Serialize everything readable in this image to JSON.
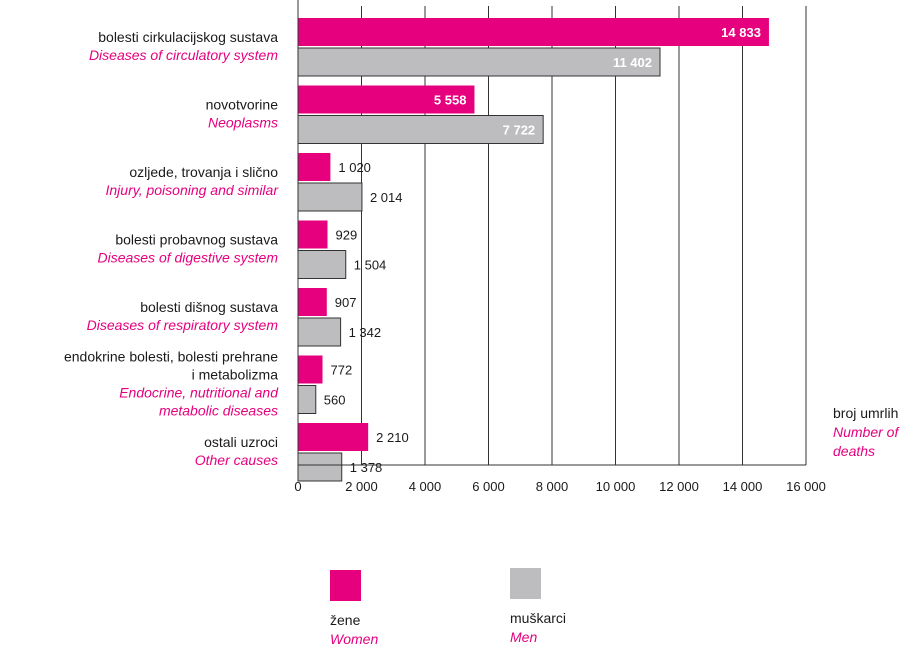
{
  "chart_data": {
    "type": "bar",
    "orientation": "horizontal",
    "categories": [
      {
        "hr": [
          "bolesti cirkulacijskog sustava"
        ],
        "en": [
          "Diseases of circulatory system"
        ]
      },
      {
        "hr": [
          "novotvorine"
        ],
        "en": [
          "Neoplasms"
        ]
      },
      {
        "hr": [
          "ozljede, trovanja i slično"
        ],
        "en": [
          "Injury, poisoning and similar"
        ]
      },
      {
        "hr": [
          "bolesti probavnog sustava"
        ],
        "en": [
          "Diseases of digestive system"
        ]
      },
      {
        "hr": [
          "bolesti dišnog sustava"
        ],
        "en": [
          "Diseases of respiratory system"
        ]
      },
      {
        "hr": [
          "endokrine bolesti, bolesti prehrane",
          "i metabolizma"
        ],
        "en": [
          "Endocrine, nutritional and",
          "metabolic diseases"
        ]
      },
      {
        "hr": [
          "ostali uzroci"
        ],
        "en": [
          "Other causes"
        ]
      }
    ],
    "series": [
      {
        "name": "žene",
        "name_en": "Women",
        "color": "#e6007e",
        "values": [
          14833,
          5558,
          1020,
          929,
          907,
          772,
          2210
        ],
        "labels": [
          "14 833",
          "5 558",
          "1 020",
          "929",
          "907",
          "772",
          "2 210"
        ]
      },
      {
        "name": "muškarci",
        "name_en": "Men",
        "color": "#bdbdc0",
        "values": [
          11402,
          7722,
          2014,
          1504,
          1342,
          560,
          1378
        ],
        "labels": [
          "11 402",
          "7 722",
          "2 014",
          "1 504",
          "1 342",
          "560",
          "1 378"
        ]
      }
    ],
    "xlim": [
      0,
      16000
    ],
    "xticks": [
      0,
      2000,
      4000,
      6000,
      8000,
      10000,
      12000,
      14000,
      16000
    ],
    "xtick_labels": [
      "0",
      "2 000",
      "4 000",
      "6 000",
      "8 000",
      "10 000",
      "12 000",
      "14 000",
      "16 000"
    ],
    "xlabel": {
      "hr": "broj umrlih",
      "en": [
        "Number of",
        "deaths"
      ]
    },
    "grid": "vertical",
    "legend_position": "bottom"
  },
  "legend": {
    "women": {
      "hr": "žene",
      "en": "Women",
      "color": "#e6007e"
    },
    "men": {
      "hr": "muškarci",
      "en": "Men",
      "color": "#bdbdc0"
    }
  }
}
